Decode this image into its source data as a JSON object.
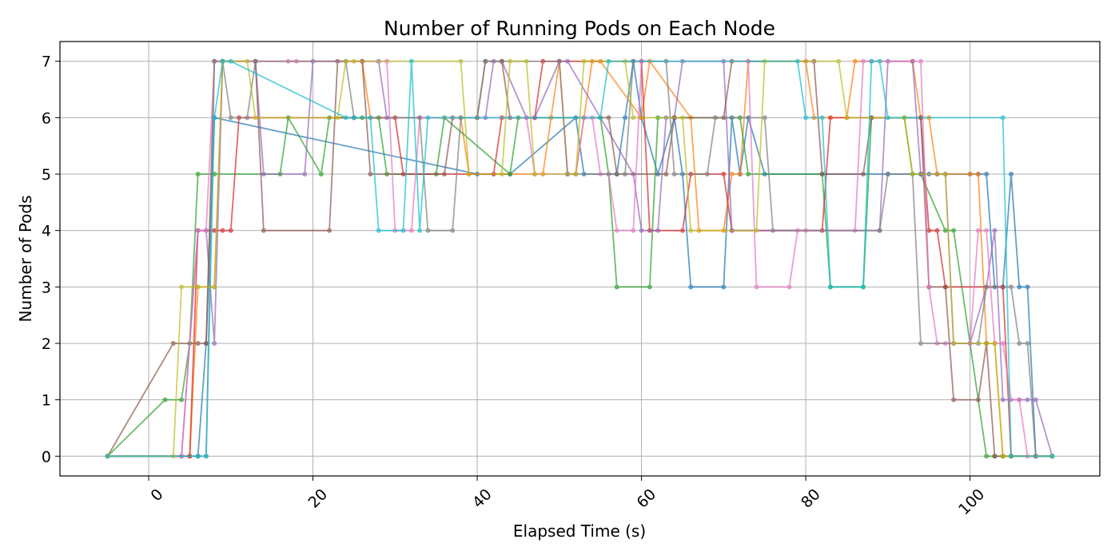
{
  "chart_data": {
    "type": "line",
    "title": "Number of Running Pods on Each Node",
    "xlabel": "Elapsed Time (s)",
    "ylabel": "Number of Pods",
    "xlim": [
      -10.8,
      115.8
    ],
    "ylim": [
      -0.35,
      7.35
    ],
    "xticks": [
      0,
      20,
      40,
      60,
      80,
      100
    ],
    "yticks": [
      0,
      1,
      2,
      3,
      4,
      5,
      6,
      7
    ],
    "x_tick_rotation": 45,
    "grid": true,
    "marker": "circle",
    "legend": "none",
    "colors": [
      "#1f77b4",
      "#ff7f0e",
      "#2ca02c",
      "#d62728",
      "#9467bd",
      "#8c564b",
      "#e377c2",
      "#7f7f7f",
      "#bcbd22",
      "#17becf"
    ],
    "series": [
      {
        "color": "#1f77b4",
        "x": [
          -5,
          6,
          7,
          8,
          40,
          44,
          52,
          53,
          57,
          58,
          59,
          60,
          62,
          64,
          65,
          66,
          70,
          71,
          72,
          73,
          75,
          90,
          94,
          95,
          96,
          100,
          101,
          102,
          103,
          104,
          105,
          106,
          107,
          108,
          110
        ],
        "values": [
          0,
          0,
          2,
          6,
          5,
          5,
          6,
          5,
          5,
          6,
          7,
          6,
          5,
          6,
          5,
          3,
          3,
          6,
          5,
          6,
          5,
          5,
          5,
          5,
          5,
          5,
          5,
          5,
          3,
          3,
          5,
          3,
          3,
          0,
          0
        ]
      },
      {
        "color": "#ff7f0e",
        "x": [
          -5,
          5,
          6,
          8,
          9,
          26,
          27,
          38,
          39,
          48,
          49,
          50,
          51,
          52,
          53,
          54,
          55,
          60,
          61,
          66,
          67,
          70,
          71,
          72,
          73,
          80,
          81,
          85,
          86,
          93,
          94,
          95,
          96,
          97,
          100,
          101,
          102,
          103,
          104,
          110
        ],
        "values": [
          0,
          0,
          3,
          3,
          7,
          7,
          6,
          6,
          5,
          5,
          6,
          7,
          5,
          5,
          6,
          7,
          7,
          6,
          7,
          6,
          4,
          4,
          5,
          5,
          7,
          7,
          6,
          6,
          7,
          7,
          6,
          6,
          5,
          5,
          5,
          5,
          2,
          2,
          0,
          0
        ]
      },
      {
        "color": "#2ca02c",
        "x": [
          -5,
          2,
          4,
          5,
          6,
          8,
          16,
          17,
          21,
          22,
          25,
          26,
          28,
          29,
          35,
          36,
          44,
          45,
          55,
          56,
          57,
          61,
          62,
          72,
          73,
          82,
          83,
          87,
          88,
          92,
          93,
          94,
          97,
          98,
          102,
          103,
          110
        ],
        "values": [
          0,
          1,
          1,
          2,
          5,
          5,
          5,
          6,
          5,
          6,
          6,
          6,
          6,
          5,
          5,
          6,
          5,
          6,
          6,
          5,
          3,
          3,
          6,
          6,
          5,
          5,
          3,
          3,
          6,
          6,
          5,
          5,
          4,
          4,
          0,
          0,
          0
        ]
      },
      {
        "color": "#d62728",
        "x": [
          -5,
          5,
          6,
          8,
          9,
          10,
          11,
          30,
          31,
          42,
          43,
          47,
          48,
          60,
          61,
          65,
          66,
          70,
          71,
          82,
          83,
          94,
          95,
          96,
          97,
          104,
          105,
          110
        ],
        "values": [
          0,
          0,
          4,
          4,
          4,
          4,
          6,
          6,
          5,
          5,
          6,
          6,
          7,
          7,
          4,
          4,
          5,
          5,
          4,
          4,
          6,
          6,
          4,
          4,
          3,
          3,
          0,
          0
        ]
      },
      {
        "color": "#9467bd",
        "x": [
          -5,
          4,
          6,
          7,
          8,
          9,
          13,
          14,
          19,
          20,
          28,
          29,
          41,
          42,
          43,
          46,
          47,
          50,
          51,
          59,
          60,
          62,
          63,
          64,
          65,
          70,
          71,
          89,
          90,
          93,
          94,
          97,
          98,
          100,
          102,
          103,
          104,
          106,
          107,
          108,
          110
        ],
        "values": [
          0,
          0,
          4,
          4,
          2,
          7,
          7,
          5,
          5,
          7,
          7,
          6,
          6,
          7,
          7,
          6,
          6,
          7,
          7,
          5,
          4,
          4,
          6,
          6,
          7,
          7,
          4,
          4,
          7,
          7,
          5,
          5,
          2,
          2,
          3,
          4,
          1,
          1,
          1,
          1,
          0
        ]
      },
      {
        "color": "#8c564b",
        "x": [
          -5,
          3,
          6,
          7,
          8,
          9,
          13,
          14,
          22,
          23,
          26,
          27,
          36,
          37,
          40,
          41,
          43,
          44,
          56,
          57,
          63,
          64,
          70,
          71,
          81,
          82,
          87,
          88,
          94,
          95,
          97,
          98,
          101,
          102,
          103,
          104,
          105,
          110
        ],
        "values": [
          0,
          2,
          2,
          2,
          7,
          7,
          7,
          4,
          4,
          7,
          7,
          5,
          5,
          6,
          6,
          7,
          7,
          6,
          6,
          5,
          5,
          6,
          6,
          7,
          7,
          5,
          5,
          6,
          6,
          3,
          3,
          1,
          1,
          2,
          0,
          0,
          0,
          0
        ]
      },
      {
        "color": "#e377c2",
        "x": [
          -5,
          4,
          6,
          7,
          8,
          9,
          17,
          18,
          29,
          30,
          32,
          33,
          46,
          47,
          52,
          53,
          54,
          55,
          56,
          57,
          59,
          60,
          73,
          74,
          78,
          79,
          80,
          86,
          87,
          88,
          94,
          95,
          96,
          97,
          98,
          100,
          101,
          102,
          103,
          104,
          105,
          106,
          107,
          110
        ],
        "values": [
          0,
          0,
          4,
          4,
          7,
          7,
          7,
          7,
          7,
          4,
          4,
          6,
          6,
          5,
          5,
          6,
          6,
          5,
          5,
          4,
          4,
          7,
          7,
          3,
          3,
          4,
          4,
          4,
          7,
          7,
          7,
          3,
          2,
          2,
          2,
          2,
          4,
          4,
          2,
          2,
          1,
          1,
          0,
          0
        ]
      },
      {
        "color": "#7f7f7f",
        "x": [
          -5,
          6,
          7,
          8,
          9,
          10,
          12,
          13,
          24,
          25,
          33,
          34,
          37,
          38,
          40,
          41,
          50,
          51,
          58,
          59,
          63,
          64,
          68,
          69,
          75,
          76,
          89,
          90,
          93,
          94,
          101,
          102,
          105,
          106,
          107,
          108,
          110
        ],
        "values": [
          0,
          0,
          0,
          7,
          7,
          6,
          6,
          7,
          7,
          6,
          6,
          4,
          4,
          6,
          6,
          7,
          7,
          5,
          5,
          7,
          7,
          5,
          5,
          6,
          6,
          4,
          4,
          5,
          5,
          2,
          2,
          3,
          3,
          2,
          2,
          0,
          0
        ]
      },
      {
        "color": "#bcbd22",
        "x": [
          -5,
          3,
          4,
          6,
          8,
          9,
          12,
          13,
          23,
          24,
          25,
          38,
          39,
          43,
          44,
          46,
          47,
          52,
          53,
          58,
          59,
          65,
          66,
          74,
          75,
          84,
          85,
          92,
          93,
          97,
          98,
          102,
          103,
          104,
          110
        ],
        "values": [
          0,
          0,
          3,
          3,
          3,
          7,
          7,
          6,
          6,
          7,
          7,
          7,
          5,
          5,
          7,
          7,
          5,
          5,
          7,
          7,
          6,
          6,
          4,
          4,
          7,
          7,
          6,
          6,
          5,
          5,
          2,
          2,
          2,
          0,
          0
        ]
      },
      {
        "color": "#17becf",
        "x": [
          -5,
          6,
          7,
          8,
          9,
          10,
          24,
          25,
          27,
          28,
          31,
          32,
          33,
          34,
          55,
          56,
          79,
          80,
          82,
          83,
          87,
          88,
          89,
          90,
          104,
          105,
          110
        ],
        "values": [
          0,
          0,
          0,
          6,
          7,
          7,
          6,
          6,
          6,
          4,
          4,
          7,
          4,
          6,
          6,
          7,
          7,
          6,
          6,
          3,
          3,
          7,
          7,
          6,
          6,
          0,
          0
        ]
      }
    ]
  }
}
